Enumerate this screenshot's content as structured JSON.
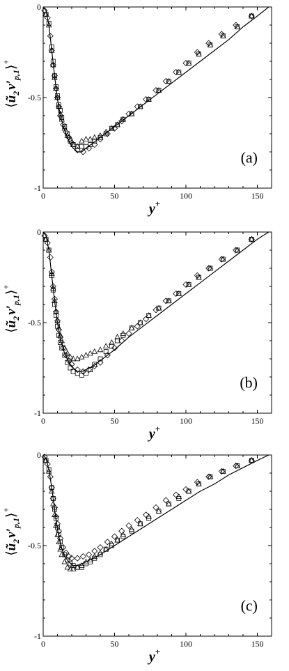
{
  "chart_data": [
    {
      "type": "scatter",
      "panel_label": "(a)",
      "xlabel": "y",
      "xlabel_sup": "+",
      "ylabel_left": "⟨",
      "ylabel_u": "ũ",
      "ylabel_u_sub": "2",
      "ylabel_v": "v′",
      "ylabel_v_sub": "p,1",
      "ylabel_right": "⟩",
      "ylabel_sup": "+",
      "xlim": [
        0,
        160
      ],
      "ylim": [
        -1,
        0
      ],
      "x_ticks": [
        0,
        50,
        100,
        150
      ],
      "x_tick_labels": [
        "0",
        "50",
        "100",
        "150"
      ],
      "y_ticks": [
        -1,
        -0.5,
        0
      ],
      "y_tick_labels": [
        "-1",
        "-0.5",
        "0"
      ],
      "line": {
        "x": [
          0,
          2,
          4,
          6,
          8,
          10,
          12,
          15,
          18,
          21,
          24,
          27,
          30,
          35,
          40,
          50,
          60,
          70,
          80,
          90,
          100,
          110,
          120,
          130,
          140,
          150,
          158
        ],
        "y": [
          0,
          -0.02,
          -0.1,
          -0.24,
          -0.38,
          -0.51,
          -0.6,
          -0.68,
          -0.74,
          -0.78,
          -0.8,
          -0.8,
          -0.78,
          -0.75,
          -0.72,
          -0.66,
          -0.6,
          -0.54,
          -0.48,
          -0.42,
          -0.36,
          -0.3,
          -0.24,
          -0.18,
          -0.11,
          -0.05,
          0
        ]
      },
      "series": [
        {
          "marker": "square",
          "x": [
            2,
            4,
            6,
            7,
            8,
            9,
            10,
            11,
            12,
            13,
            15,
            17,
            19,
            21,
            24,
            27,
            30,
            33,
            36,
            40,
            44,
            48,
            52,
            56,
            62,
            68,
            74,
            81,
            88,
            95,
            102,
            109,
            117,
            126,
            136,
            146
          ],
          "y": [
            -0.04,
            -0.09,
            -0.22,
            -0.3,
            -0.38,
            -0.44,
            -0.49,
            -0.54,
            -0.57,
            -0.61,
            -0.66,
            -0.7,
            -0.74,
            -0.76,
            -0.77,
            -0.77,
            -0.77,
            -0.76,
            -0.74,
            -0.72,
            -0.7,
            -0.67,
            -0.65,
            -0.62,
            -0.59,
            -0.55,
            -0.51,
            -0.46,
            -0.41,
            -0.36,
            -0.31,
            -0.26,
            -0.21,
            -0.16,
            -0.11,
            -0.05
          ]
        },
        {
          "marker": "triangle",
          "x": [
            2,
            4,
            6,
            7,
            8,
            9,
            10,
            11,
            12,
            13,
            15,
            17,
            19,
            21,
            24,
            27,
            30,
            33,
            36,
            40,
            44,
            48,
            52,
            56,
            62,
            68,
            74,
            81,
            88,
            95,
            102,
            109,
            117,
            126,
            136,
            146
          ],
          "y": [
            -0.04,
            -0.1,
            -0.24,
            -0.32,
            -0.39,
            -0.45,
            -0.5,
            -0.55,
            -0.59,
            -0.62,
            -0.67,
            -0.71,
            -0.73,
            -0.76,
            -0.77,
            -0.74,
            -0.73,
            -0.73,
            -0.72,
            -0.71,
            -0.69,
            -0.67,
            -0.65,
            -0.62,
            -0.59,
            -0.55,
            -0.51,
            -0.46,
            -0.41,
            -0.36,
            -0.31,
            -0.26,
            -0.21,
            -0.16,
            -0.11,
            -0.05
          ]
        },
        {
          "marker": "diamond",
          "x": [
            1,
            3,
            5,
            6,
            7,
            8,
            9,
            10,
            11,
            12,
            14,
            16,
            18,
            20,
            24,
            28,
            32,
            36,
            40,
            45,
            50,
            55,
            60,
            66,
            72,
            79,
            86,
            93,
            100,
            108,
            116,
            125,
            135,
            146
          ],
          "y": [
            -0.02,
            -0.06,
            -0.16,
            -0.24,
            -0.32,
            -0.38,
            -0.45,
            -0.5,
            -0.55,
            -0.6,
            -0.65,
            -0.69,
            -0.72,
            -0.75,
            -0.79,
            -0.8,
            -0.78,
            -0.76,
            -0.73,
            -0.7,
            -0.67,
            -0.63,
            -0.59,
            -0.55,
            -0.51,
            -0.46,
            -0.41,
            -0.36,
            -0.31,
            -0.25,
            -0.2,
            -0.15,
            -0.1,
            -0.05
          ]
        }
      ]
    },
    {
      "type": "scatter",
      "panel_label": "(b)",
      "xlabel": "y",
      "xlabel_sup": "+",
      "ylabel_left": "⟨",
      "ylabel_u": "ũ",
      "ylabel_u_sub": "2",
      "ylabel_v": "v′",
      "ylabel_v_sub": "p,1",
      "ylabel_right": "⟩",
      "ylabel_sup": "+",
      "xlim": [
        0,
        160
      ],
      "ylim": [
        -1,
        0
      ],
      "x_ticks": [
        0,
        50,
        100,
        150
      ],
      "x_tick_labels": [
        "0",
        "50",
        "100",
        "150"
      ],
      "y_ticks": [
        -1,
        -0.5,
        0
      ],
      "y_tick_labels": [
        "-1",
        "-0.5",
        "0"
      ],
      "line": {
        "x": [
          0,
          2,
          4,
          6,
          8,
          10,
          12,
          15,
          18,
          21,
          24,
          27,
          30,
          35,
          40,
          50,
          60,
          70,
          80,
          90,
          100,
          110,
          120,
          130,
          140,
          150,
          158
        ],
        "y": [
          0,
          -0.02,
          -0.1,
          -0.24,
          -0.38,
          -0.5,
          -0.59,
          -0.67,
          -0.72,
          -0.75,
          -0.77,
          -0.77,
          -0.76,
          -0.74,
          -0.71,
          -0.65,
          -0.58,
          -0.52,
          -0.46,
          -0.4,
          -0.34,
          -0.28,
          -0.22,
          -0.16,
          -0.1,
          -0.04,
          0
        ]
      },
      "series": [
        {
          "marker": "square",
          "x": [
            2,
            4,
            6,
            7,
            8,
            9,
            10,
            11,
            12,
            13,
            15,
            17,
            19,
            21,
            24,
            27,
            30,
            33,
            36,
            40,
            44,
            48,
            52,
            56,
            62,
            68,
            74,
            81,
            88,
            95,
            102,
            109,
            117,
            126,
            136,
            146
          ],
          "y": [
            -0.04,
            -0.1,
            -0.24,
            -0.32,
            -0.4,
            -0.46,
            -0.52,
            -0.57,
            -0.61,
            -0.64,
            -0.68,
            -0.72,
            -0.75,
            -0.77,
            -0.78,
            -0.79,
            -0.78,
            -0.76,
            -0.73,
            -0.7,
            -0.66,
            -0.63,
            -0.6,
            -0.57,
            -0.53,
            -0.5,
            -0.46,
            -0.42,
            -0.38,
            -0.34,
            -0.29,
            -0.25,
            -0.2,
            -0.15,
            -0.1,
            -0.04
          ]
        },
        {
          "marker": "triangle",
          "x": [
            2,
            4,
            6,
            7,
            8,
            9,
            10,
            11,
            12,
            13,
            15,
            17,
            19,
            21,
            24,
            27,
            30,
            33,
            36,
            40,
            44,
            48,
            52,
            56,
            62,
            68,
            74,
            81,
            88,
            95,
            102,
            109,
            117,
            126,
            136,
            146
          ],
          "y": [
            -0.04,
            -0.1,
            -0.23,
            -0.31,
            -0.38,
            -0.44,
            -0.49,
            -0.53,
            -0.57,
            -0.6,
            -0.64,
            -0.67,
            -0.69,
            -0.7,
            -0.7,
            -0.69,
            -0.68,
            -0.67,
            -0.66,
            -0.65,
            -0.63,
            -0.61,
            -0.58,
            -0.56,
            -0.53,
            -0.5,
            -0.46,
            -0.42,
            -0.38,
            -0.34,
            -0.29,
            -0.25,
            -0.2,
            -0.15,
            -0.1,
            -0.04
          ]
        },
        {
          "marker": "diamond",
          "x": [
            1,
            3,
            5,
            6,
            7,
            8,
            9,
            10,
            11,
            12,
            14,
            16,
            18,
            20,
            24,
            28,
            32,
            36,
            40,
            45,
            50,
            55,
            60,
            66,
            72,
            79,
            86,
            93,
            100,
            108,
            116,
            125,
            135,
            146
          ],
          "y": [
            -0.02,
            -0.06,
            -0.14,
            -0.22,
            -0.3,
            -0.37,
            -0.44,
            -0.49,
            -0.54,
            -0.58,
            -0.64,
            -0.68,
            -0.71,
            -0.73,
            -0.76,
            -0.77,
            -0.76,
            -0.74,
            -0.72,
            -0.68,
            -0.64,
            -0.6,
            -0.56,
            -0.52,
            -0.48,
            -0.43,
            -0.38,
            -0.34,
            -0.29,
            -0.24,
            -0.2,
            -0.15,
            -0.1,
            -0.04
          ]
        }
      ]
    },
    {
      "type": "scatter",
      "panel_label": "(c)",
      "xlabel": "y",
      "xlabel_sup": "+",
      "ylabel_left": "⟨",
      "ylabel_u": "ũ",
      "ylabel_u_sub": "2",
      "ylabel_v": "v′",
      "ylabel_v_sub": "p,1",
      "ylabel_right": "⟩",
      "ylabel_sup": "+",
      "xlim": [
        0,
        160
      ],
      "ylim": [
        -1,
        0
      ],
      "x_ticks": [
        0,
        50,
        100,
        150
      ],
      "x_tick_labels": [
        "0",
        "50",
        "100",
        "150"
      ],
      "y_ticks": [
        -1,
        -0.5,
        0
      ],
      "y_tick_labels": [
        "-1",
        "-0.5",
        "0"
      ],
      "line": {
        "x": [
          0,
          2,
          4,
          6,
          8,
          10,
          12,
          15,
          18,
          21,
          24,
          27,
          30,
          35,
          40,
          50,
          60,
          70,
          80,
          90,
          100,
          110,
          120,
          130,
          140,
          150,
          158
        ],
        "y": [
          0,
          -0.02,
          -0.08,
          -0.18,
          -0.3,
          -0.41,
          -0.49,
          -0.56,
          -0.59,
          -0.61,
          -0.61,
          -0.6,
          -0.59,
          -0.57,
          -0.55,
          -0.5,
          -0.45,
          -0.4,
          -0.35,
          -0.3,
          -0.25,
          -0.2,
          -0.16,
          -0.11,
          -0.07,
          -0.03,
          0
        ]
      },
      "series": [
        {
          "marker": "square",
          "x": [
            2,
            4,
            6,
            7,
            8,
            9,
            10,
            11,
            12,
            13,
            15,
            17,
            19,
            21,
            24,
            27,
            30,
            33,
            36,
            40,
            44,
            48,
            52,
            56,
            62,
            68,
            74,
            81,
            88,
            95,
            102,
            109,
            117,
            126,
            136,
            146
          ],
          "y": [
            -0.03,
            -0.08,
            -0.18,
            -0.24,
            -0.3,
            -0.35,
            -0.4,
            -0.44,
            -0.48,
            -0.51,
            -0.55,
            -0.58,
            -0.6,
            -0.61,
            -0.62,
            -0.62,
            -0.6,
            -0.59,
            -0.57,
            -0.55,
            -0.52,
            -0.5,
            -0.47,
            -0.45,
            -0.42,
            -0.38,
            -0.35,
            -0.31,
            -0.27,
            -0.24,
            -0.2,
            -0.16,
            -0.12,
            -0.09,
            -0.06,
            -0.03
          ]
        },
        {
          "marker": "triangle",
          "x": [
            2,
            4,
            6,
            7,
            8,
            9,
            10,
            11,
            12,
            13,
            15,
            17,
            19,
            21,
            24,
            27,
            30,
            33,
            36,
            40,
            44,
            48,
            52,
            56,
            62,
            68,
            74,
            81,
            88,
            95,
            102,
            109,
            117,
            126,
            136,
            146
          ],
          "y": [
            -0.03,
            -0.09,
            -0.2,
            -0.27,
            -0.33,
            -0.39,
            -0.44,
            -0.48,
            -0.52,
            -0.55,
            -0.59,
            -0.62,
            -0.63,
            -0.63,
            -0.62,
            -0.61,
            -0.59,
            -0.58,
            -0.56,
            -0.54,
            -0.52,
            -0.49,
            -0.47,
            -0.44,
            -0.41,
            -0.38,
            -0.34,
            -0.31,
            -0.27,
            -0.23,
            -0.2,
            -0.16,
            -0.12,
            -0.09,
            -0.06,
            -0.03
          ]
        },
        {
          "marker": "diamond",
          "x": [
            1,
            3,
            5,
            6,
            7,
            8,
            9,
            10,
            11,
            12,
            14,
            16,
            18,
            20,
            24,
            28,
            32,
            36,
            40,
            45,
            50,
            55,
            60,
            66,
            72,
            79,
            86,
            93,
            100,
            108,
            116,
            125,
            135,
            146
          ],
          "y": [
            -0.01,
            -0.05,
            -0.12,
            -0.18,
            -0.24,
            -0.29,
            -0.34,
            -0.38,
            -0.42,
            -0.46,
            -0.51,
            -0.54,
            -0.56,
            -0.57,
            -0.57,
            -0.56,
            -0.55,
            -0.53,
            -0.51,
            -0.48,
            -0.45,
            -0.42,
            -0.39,
            -0.36,
            -0.33,
            -0.29,
            -0.25,
            -0.22,
            -0.19,
            -0.15,
            -0.12,
            -0.09,
            -0.06,
            -0.03
          ]
        }
      ]
    }
  ]
}
